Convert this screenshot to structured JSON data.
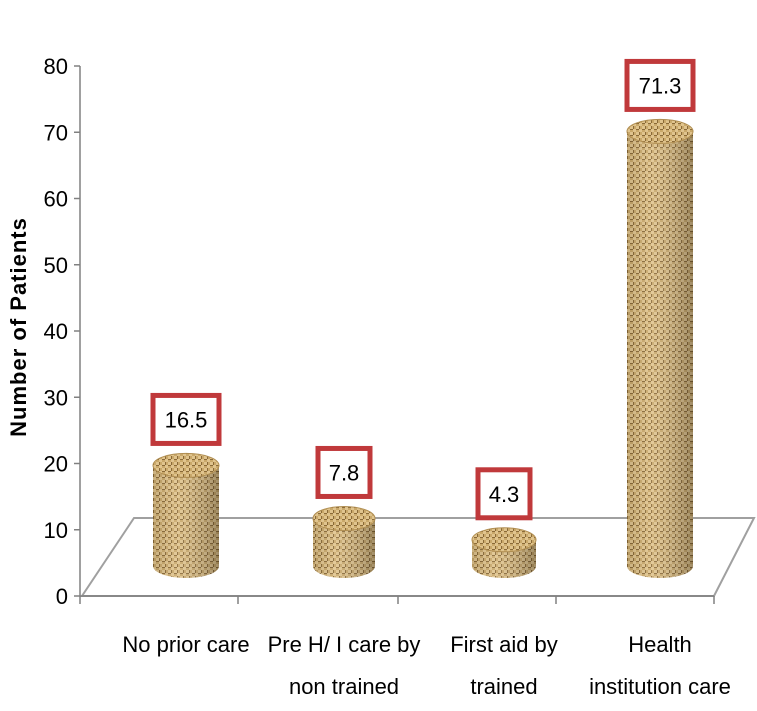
{
  "chart_data": {
    "type": "bar",
    "title": "",
    "xlabel": "",
    "ylabel": "Number of Patients",
    "ylim": [
      0,
      80
    ],
    "yticks": [
      0,
      10,
      20,
      30,
      40,
      50,
      60,
      70,
      80
    ],
    "grid": false,
    "legend": "none",
    "categories": [
      [
        "No prior care"
      ],
      [
        "Pre H/ I care by",
        "non trained"
      ],
      [
        "First aid by",
        "trained"
      ],
      [
        "Health",
        "institution care"
      ]
    ],
    "values": [
      16.5,
      7.8,
      4.3,
      71.3
    ],
    "data_labels": [
      "16.5",
      "7.8",
      "4.3",
      "71.3"
    ],
    "colors": {
      "bar_fill": "#c9a86a",
      "bar_dark": "#8a6a38",
      "bar_light": "#e6cfa0",
      "label_border": "#c0393b",
      "floor_line": "#a0a0a0",
      "axis": "#808080"
    }
  }
}
